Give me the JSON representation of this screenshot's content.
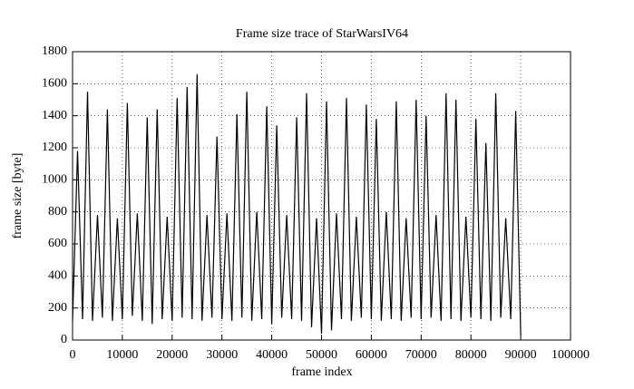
{
  "chart_data": {
    "type": "line",
    "title": "Frame size trace of StarWarsIV64",
    "xlabel": "frame index",
    "ylabel": "frame size [byte]",
    "x": [
      0,
      1000,
      2000,
      3000,
      4000,
      5000,
      6000,
      7000,
      8000,
      9000,
      10000,
      11000,
      12000,
      13000,
      14000,
      15000,
      16000,
      17000,
      18000,
      19000,
      20000,
      21000,
      22000,
      23000,
      24000,
      25000,
      26000,
      27000,
      28000,
      29000,
      30000,
      31000,
      32000,
      33000,
      34000,
      35000,
      36000,
      37000,
      38000,
      39000,
      40000,
      41000,
      42000,
      43000,
      44000,
      45000,
      46000,
      47000,
      48000,
      49000,
      50000,
      51000,
      52000,
      53000,
      54000,
      55000,
      56000,
      57000,
      58000,
      59000,
      60000,
      61000,
      62000,
      63000,
      64000,
      65000,
      66000,
      67000,
      68000,
      69000,
      70000,
      71000,
      72000,
      73000,
      74000,
      75000,
      76000,
      77000,
      78000,
      79000,
      80000,
      81000,
      82000,
      83000,
      84000,
      85000,
      86000,
      87000,
      88000,
      89000,
      90000
    ],
    "series": [
      {
        "name": null,
        "color": "#000000",
        "values": [
          120,
          1180,
          130,
          1550,
          120,
          780,
          140,
          1440,
          120,
          760,
          130,
          1480,
          150,
          790,
          120,
          1390,
          100,
          1440,
          130,
          770,
          120,
          1510,
          140,
          1580,
          130,
          1660,
          120,
          780,
          140,
          1270,
          130,
          790,
          120,
          1410,
          140,
          1550,
          120,
          800,
          130,
          1460,
          100,
          1340,
          140,
          780,
          130,
          1390,
          120,
          1540,
          80,
          760,
          40,
          1490,
          60,
          790,
          130,
          1510,
          120,
          770,
          140,
          1470,
          130,
          1380,
          120,
          800,
          130,
          1490,
          120,
          760,
          140,
          1500,
          130,
          1400,
          140,
          780,
          120,
          1540,
          130,
          1500,
          120,
          770,
          140,
          1380,
          130,
          1230,
          120,
          1540,
          140,
          760,
          130,
          1430,
          30
        ]
      }
    ],
    "xlim": [
      0,
      100000
    ],
    "xticks": [
      0,
      10000,
      20000,
      30000,
      40000,
      50000,
      60000,
      70000,
      80000,
      90000,
      100000
    ],
    "ylim": [
      0,
      1800
    ],
    "yticks": [
      0,
      200,
      400,
      600,
      800,
      1000,
      1200,
      1400,
      1600,
      1800
    ],
    "grid": true
  }
}
